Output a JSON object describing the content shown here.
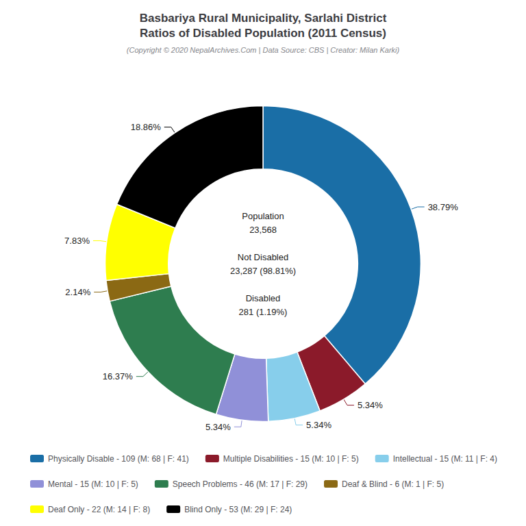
{
  "chart_data": {
    "type": "donut",
    "title": "Basbariya Rural Municipality, Sarlahi District\nRatios of Disabled Population (2011 Census)",
    "subtitle": "(Copyright © 2020 NepalArchives.Com | Data Source: CBS | Creator: Milan Karki)",
    "categories": [
      "Physically Disable - 109 (M: 68 | F: 41)",
      "Multiple Disabilities - 15 (M: 10 | F: 5)",
      "Intellectual - 15 (M: 11 | F: 4)",
      "Mental - 15 (M: 10 | F: 5)",
      "Speech Problems - 46 (M: 17 | F: 29)",
      "Deaf & Blind - 6 (M: 1 | F: 5)",
      "Deaf Only - 22 (M: 14 | F: 8)",
      "Blind Only - 53 (M: 29 | F: 24)"
    ],
    "values": [
      38.79,
      5.34,
      5.34,
      5.34,
      16.37,
      2.14,
      7.83,
      18.86
    ],
    "value_labels": [
      "38.79%",
      "5.34%",
      "5.34%",
      "5.34%",
      "16.37%",
      "2.14%",
      "7.83%",
      "18.86%"
    ],
    "colors": [
      "#1a6ea6",
      "#8b1a2a",
      "#87ceeb",
      "#9090d8",
      "#2e7d4f",
      "#8b6914",
      "#ffff00",
      "#000000"
    ],
    "data_labels": true,
    "legend": "bottom",
    "annotations": [
      "Population\n23,568\n\nNot Disabled\n23,287 (98.81%)\n\nDisabled\n281 (1.19%)"
    ]
  }
}
